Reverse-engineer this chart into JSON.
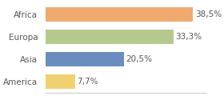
{
  "categories": [
    "Africa",
    "Europa",
    "Asia",
    "America"
  ],
  "values": [
    38.5,
    33.3,
    20.5,
    7.7
  ],
  "labels": [
    "38,5%",
    "33,3%",
    "20,5%",
    "7,7%"
  ],
  "bar_colors": [
    "#f0a96e",
    "#b5c98e",
    "#6b8cbf",
    "#f0d070"
  ],
  "background_color": "#ffffff",
  "xlim": [
    0,
    42
  ],
  "label_fontsize": 7.5,
  "tick_fontsize": 7.5
}
